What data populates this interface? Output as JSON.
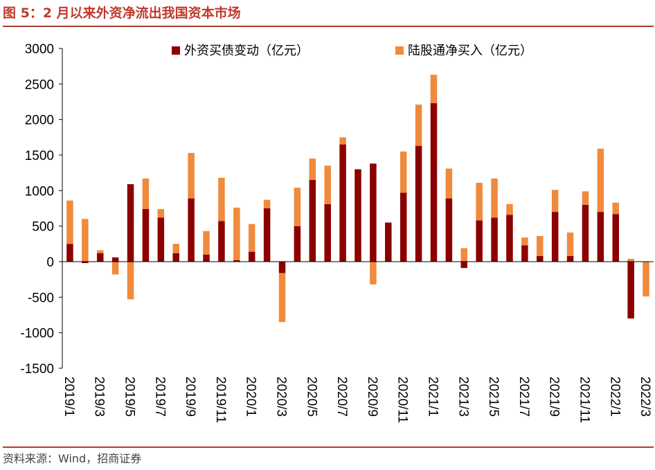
{
  "title": "图 5：2 月以来外资净流出我国资本市场",
  "source": "资料来源：Wind，招商证券",
  "chart_data": {
    "type": "bar",
    "stacked": true,
    "categories": [
      "2019/1",
      "2019/2",
      "2019/3",
      "2019/4",
      "2019/5",
      "2019/6",
      "2019/7",
      "2019/8",
      "2019/9",
      "2019/10",
      "2019/11",
      "2019/12",
      "2020/1",
      "2020/2",
      "2020/3",
      "2020/4",
      "2020/5",
      "2020/6",
      "2020/7",
      "2020/8",
      "2020/9",
      "2020/10",
      "2020/11",
      "2020/12",
      "2021/1",
      "2021/2",
      "2021/3",
      "2021/4",
      "2021/5",
      "2021/6",
      "2021/7",
      "2021/8",
      "2021/9",
      "2021/10",
      "2021/11",
      "2021/12",
      "2022/1",
      "2022/2",
      "2022/3"
    ],
    "tick_labels": [
      "2019/1",
      "2019/3",
      "2019/5",
      "2019/7",
      "2019/9",
      "2019/11",
      "2020/1",
      "2020/3",
      "2020/5",
      "2020/7",
      "2020/9",
      "2020/11",
      "2021/1",
      "2021/3",
      "2021/5",
      "2021/7",
      "2021/9",
      "2021/11",
      "2022/1",
      "2022/3"
    ],
    "series": [
      {
        "name": "外资买债变动（亿元）",
        "color": "#8b0000",
        "values": [
          250,
          -20,
          120,
          60,
          1090,
          740,
          620,
          120,
          890,
          100,
          570,
          20,
          140,
          750,
          -160,
          500,
          1150,
          810,
          1650,
          1300,
          1380,
          550,
          970,
          1630,
          2230,
          890,
          -90,
          580,
          620,
          660,
          230,
          80,
          700,
          80,
          800,
          700,
          670,
          -800,
          0
        ]
      },
      {
        "name": "陆股通净买入（亿元）",
        "color": "#f08a3c",
        "values": [
          610,
          600,
          40,
          -180,
          -530,
          430,
          120,
          130,
          640,
          330,
          610,
          740,
          390,
          120,
          -690,
          540,
          300,
          540,
          100,
          0,
          -320,
          0,
          580,
          580,
          400,
          420,
          190,
          530,
          550,
          150,
          110,
          280,
          310,
          330,
          190,
          890,
          160,
          40,
          -490
        ]
      }
    ],
    "ylim": [
      -1500,
      3000
    ],
    "yticks": [
      -1500,
      -1000,
      -500,
      0,
      500,
      1000,
      1500,
      2000,
      2500,
      3000
    ],
    "legend_position": "top-center"
  }
}
